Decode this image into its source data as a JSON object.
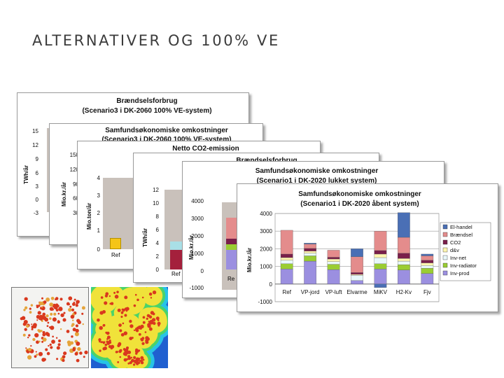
{
  "slide": {
    "title": "ALTERNATIVER OG 100% VE"
  },
  "cards": [
    {
      "title": "Brændselsforbrug",
      "subtitle": "(Scenario3 i DK-2060 100% VE-system)",
      "ylabel": "TWh/år",
      "ticks": [
        "15",
        "12",
        "9",
        "6",
        "3",
        "0",
        "-3"
      ]
    },
    {
      "title": "Samfundsøkonomiske omkostninger",
      "subtitle": "(Scenario3 i DK-2060 100% VE-system)",
      "ylabel": "Mio.kr./år",
      "ticks": [
        "150",
        "120",
        "90",
        "60",
        "30"
      ]
    },
    {
      "title": "Netto CO2-emission",
      "ylabel": "Mio.ton/år",
      "ticks": [
        "4",
        "3",
        "2",
        "1",
        "0"
      ],
      "category": "Ref"
    },
    {
      "title": "Brændselsforbrug",
      "ylabel": "TWh/år",
      "ticks": [
        "12",
        "10",
        "8",
        "6",
        "4",
        "2",
        "0"
      ],
      "category": "Ref"
    },
    {
      "title": "Samfundsøkonomiske omkostninger",
      "subtitle": "(Scenario1 i DK-2020 lukket system)",
      "ylabel": "Mio.kr./år",
      "ticks": [
        "4000",
        "3000",
        "2000",
        "1000",
        "0",
        "-1000"
      ],
      "category": "Re"
    }
  ],
  "chart_data": {
    "type": "bar",
    "stacked": true,
    "title": "Samfundsøkonomiske omkostninger",
    "subtitle": "(Scenario1 i DK-2020 åbent system)",
    "ylabel": "Mio.kr./år",
    "ylim": [
      -1000,
      4000
    ],
    "yticks": [
      4000,
      3000,
      2000,
      1000,
      0,
      -1000
    ],
    "grid": true,
    "legend_position": "right",
    "categories": [
      "Ref",
      "VP-jord",
      "VP-luft",
      "Elvarme",
      "MiKV",
      "H2-Kv",
      "Fjv"
    ],
    "series": [
      {
        "name": "Inv-prod",
        "color": "#9b8fe0",
        "values": [
          850,
          1300,
          820,
          200,
          850,
          800,
          600
        ]
      },
      {
        "name": "Inv-radiator",
        "color": "#9acd32",
        "values": [
          300,
          300,
          300,
          0,
          300,
          300,
          300
        ]
      },
      {
        "name": "Inv-net",
        "color": "#e8f8fa",
        "values": [
          200,
          150,
          150,
          300,
          350,
          200,
          150
        ]
      },
      {
        "name": "d&v",
        "color": "#fff6b0",
        "values": [
          150,
          120,
          150,
          50,
          200,
          150,
          150
        ]
      },
      {
        "name": "CO2",
        "color": "#7a1f4a",
        "values": [
          200,
          150,
          100,
          100,
          200,
          300,
          150
        ]
      },
      {
        "name": "Brændsel",
        "color": "#e48c8c",
        "values": [
          1350,
          250,
          400,
          900,
          1100,
          900,
          250
        ]
      },
      {
        "name": "El-handel",
        "color": "#4a6fb5",
        "values": [
          0,
          50,
          0,
          450,
          -200,
          1400,
          100
        ]
      }
    ]
  },
  "maps": [
    {
      "label": ""
    },
    {
      "label": ""
    }
  ]
}
